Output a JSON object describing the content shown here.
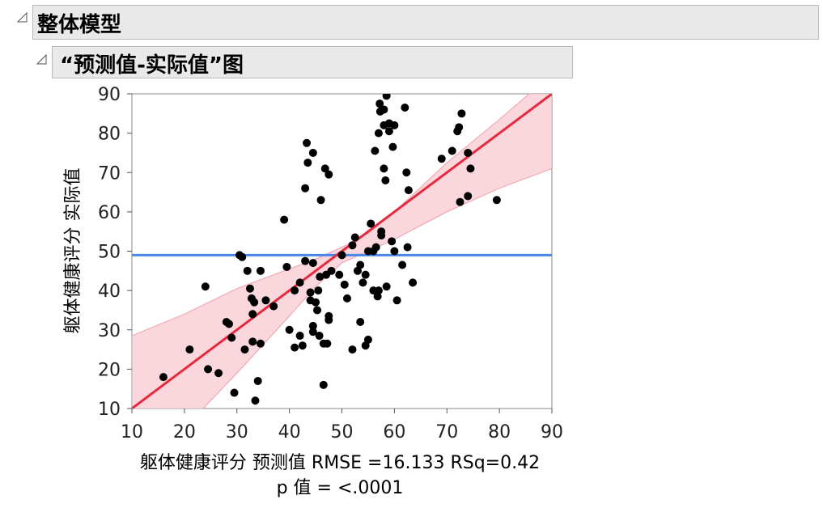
{
  "outline": {
    "section_title": "整体模型",
    "plot_title": "“预测值-实际值”图"
  },
  "colors": {
    "header_bg": "#e9e9e9",
    "fit_line": "#e8283c",
    "confidence_band": "#f9d0d6",
    "mean_line": "#4a86e8",
    "points": "#000000"
  },
  "chart_data": {
    "type": "scatter",
    "xlabel": "躯体健康评分 预测值 RMSE =16.133 RSq=0.42",
    "ylabel": "躯体健康评分 实际值",
    "footnote": "p 值 = <.0001",
    "xlim": [
      10,
      90
    ],
    "ylim": [
      10,
      90
    ],
    "xticks": [
      10,
      20,
      30,
      40,
      50,
      60,
      70,
      80,
      90
    ],
    "yticks": [
      10,
      20,
      30,
      40,
      50,
      60,
      70,
      80,
      90
    ],
    "mean_line_y": 49,
    "fit_line": [
      [
        10,
        10
      ],
      [
        90,
        90
      ]
    ],
    "confidence_band": {
      "x": [
        10,
        20,
        30,
        40,
        45,
        50,
        55,
        60,
        70,
        80,
        90
      ],
      "upper": [
        28.5,
        34,
        40.5,
        45.5,
        48,
        51,
        54.5,
        60,
        72.5,
        83.5,
        95
      ],
      "lower": [
        -7,
        5,
        19,
        33.5,
        41,
        47,
        50,
        53,
        60,
        66,
        71
      ]
    },
    "points": [
      [
        16,
        18
      ],
      [
        21,
        25
      ],
      [
        24,
        41
      ],
      [
        24.5,
        20
      ],
      [
        26.5,
        19
      ],
      [
        28,
        32
      ],
      [
        28.5,
        31.5
      ],
      [
        29,
        28
      ],
      [
        29.5,
        14
      ],
      [
        30.5,
        49
      ],
      [
        31,
        48.5
      ],
      [
        31.5,
        25
      ],
      [
        32,
        45
      ],
      [
        32.5,
        40.5
      ],
      [
        32.8,
        38
      ],
      [
        33,
        34
      ],
      [
        33,
        27
      ],
      [
        33.3,
        37
      ],
      [
        33.5,
        12
      ],
      [
        34,
        17
      ],
      [
        34.5,
        45
      ],
      [
        34.5,
        26.5
      ],
      [
        35.5,
        37.5
      ],
      [
        37,
        36
      ],
      [
        39,
        58
      ],
      [
        39.5,
        46
      ],
      [
        40,
        30
      ],
      [
        41,
        40
      ],
      [
        41,
        25.5
      ],
      [
        42,
        42
      ],
      [
        42,
        28.5
      ],
      [
        42.5,
        26
      ],
      [
        43,
        66
      ],
      [
        43,
        47.5
      ],
      [
        43.3,
        77.5
      ],
      [
        43.5,
        72.5
      ],
      [
        44,
        37.5
      ],
      [
        44,
        39.5
      ],
      [
        44.5,
        75
      ],
      [
        44.5,
        47
      ],
      [
        44.5,
        31
      ],
      [
        44.5,
        29.5
      ],
      [
        45,
        37
      ],
      [
        45.3,
        35
      ],
      [
        45.5,
        40
      ],
      [
        45.7,
        28.5
      ],
      [
        45.8,
        43.5
      ],
      [
        46,
        63
      ],
      [
        46.5,
        26.5
      ],
      [
        46.5,
        16
      ],
      [
        46.8,
        71
      ],
      [
        47,
        44
      ],
      [
        47.2,
        26.5
      ],
      [
        47.5,
        69.5
      ],
      [
        47.5,
        33.5
      ],
      [
        47.5,
        32.5
      ],
      [
        48,
        45
      ],
      [
        49.5,
        44
      ],
      [
        50,
        49
      ],
      [
        50.5,
        41.5
      ],
      [
        51,
        38
      ],
      [
        52,
        25
      ],
      [
        52,
        51.5
      ],
      [
        52.5,
        53.5
      ],
      [
        53,
        45
      ],
      [
        53.5,
        46.5
      ],
      [
        53.5,
        32
      ],
      [
        54,
        42
      ],
      [
        54.5,
        26
      ],
      [
        54.5,
        44
      ],
      [
        55,
        50
      ],
      [
        55,
        27.5
      ],
      [
        55.5,
        57
      ],
      [
        56,
        50
      ],
      [
        56,
        40
      ],
      [
        56.3,
        75.5
      ],
      [
        56.5,
        51
      ],
      [
        56.8,
        38.5
      ],
      [
        57,
        80
      ],
      [
        57,
        40
      ],
      [
        57.2,
        87.5
      ],
      [
        57.3,
        85.5
      ],
      [
        57.5,
        54
      ],
      [
        57.5,
        55
      ],
      [
        58,
        86
      ],
      [
        58,
        82
      ],
      [
        58,
        71
      ],
      [
        58.3,
        68
      ],
      [
        58.5,
        89.5
      ],
      [
        58.5,
        41
      ],
      [
        59,
        80.5
      ],
      [
        59,
        82.5
      ],
      [
        59.5,
        52.5
      ],
      [
        59.7,
        76.5
      ],
      [
        60,
        82
      ],
      [
        60,
        50
      ],
      [
        60.5,
        37.5
      ],
      [
        61.5,
        46.5
      ],
      [
        62,
        86.5
      ],
      [
        62.3,
        70
      ],
      [
        62.5,
        51
      ],
      [
        62.7,
        65.5
      ],
      [
        63.5,
        42
      ],
      [
        69,
        73.5
      ],
      [
        71,
        75.5
      ],
      [
        72,
        80.5
      ],
      [
        72.3,
        81.5
      ],
      [
        72.5,
        62.5
      ],
      [
        72.8,
        85
      ],
      [
        74,
        75
      ],
      [
        74,
        64
      ],
      [
        74.5,
        71
      ],
      [
        79.5,
        63
      ]
    ]
  }
}
